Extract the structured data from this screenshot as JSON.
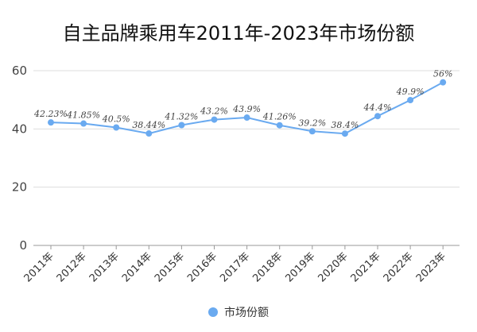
{
  "chart_data": {
    "type": "line",
    "title": "自主品牌乘用车2011年-2023年市场份额",
    "categories": [
      "2011年",
      "2012年",
      "2013年",
      "2014年",
      "2015年",
      "2016年",
      "2017年",
      "2018年",
      "2019年",
      "2020年",
      "2021年",
      "2022年",
      "2023年"
    ],
    "series": [
      {
        "name": "市场份额",
        "values": [
          42.23,
          41.85,
          40.5,
          38.44,
          41.32,
          43.2,
          43.9,
          41.26,
          39.2,
          38.4,
          44.4,
          49.9,
          56
        ],
        "labels": [
          "42.23%",
          "41.85%",
          "40.5%",
          "38.44%",
          "41.32%",
          "43.2%",
          "43.9%",
          "41.26%",
          "39.2%",
          "38.4%",
          "44.4%",
          "49.9%",
          "56%"
        ],
        "color": "#6aaaf0"
      }
    ],
    "ylim": [
      0,
      60
    ],
    "yticks": [
      "0",
      "20",
      "40",
      "60"
    ],
    "grid": true,
    "legend": "bottom"
  }
}
